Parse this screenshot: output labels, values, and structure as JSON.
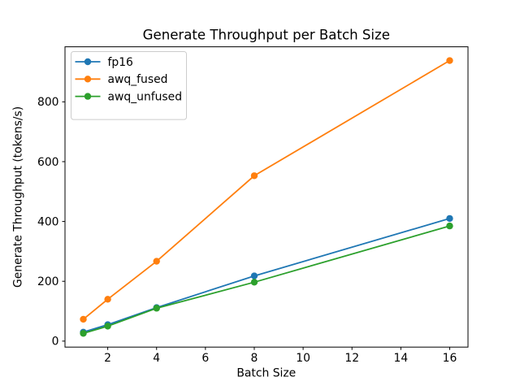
{
  "chart_data": {
    "type": "line",
    "title": "Generate Throughput per Batch Size",
    "xlabel": "Batch Size",
    "ylabel": "Generate Throughput (tokens/s)",
    "x": [
      1,
      2,
      4,
      8,
      16
    ],
    "series": [
      {
        "name": "fp16",
        "color": "#1f77b4",
        "values": [
          30,
          55,
          112,
          218,
          410
        ]
      },
      {
        "name": "awq_fused",
        "color": "#ff7f0e",
        "values": [
          73,
          140,
          267,
          553,
          938
        ]
      },
      {
        "name": "awq_unfused",
        "color": "#2ca02c",
        "values": [
          26,
          50,
          110,
          197,
          385
        ]
      }
    ],
    "xticks": [
      2,
      4,
      6,
      8,
      10,
      12,
      14,
      16
    ],
    "yticks": [
      0,
      200,
      400,
      600,
      800
    ],
    "xlim": [
      0.25,
      16.75
    ],
    "ylim": [
      -20,
      984
    ],
    "grid": false,
    "marker": "circle",
    "legend_position": "upper left",
    "legend_entries": [
      "fp16",
      "awq_fused",
      "awq_unfused"
    ],
    "colors": {
      "background": "#ffffff",
      "frame": "#000000",
      "tick": "#000000",
      "legend_border": "#cccccc",
      "legend_fill": "#ffffff"
    }
  }
}
